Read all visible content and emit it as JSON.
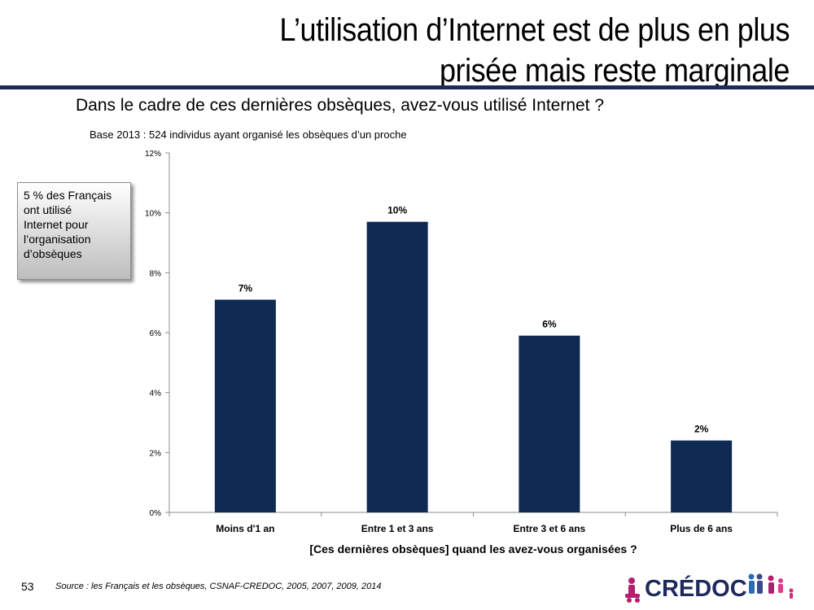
{
  "slide": {
    "title_lines": [
      "L’utilisation d’Internet est de plus en plus",
      "prisée mais reste marginale"
    ],
    "question": "Dans le cadre de ces dernières obsèques, avez-vous utilisé Internet ?",
    "base_note": "Base 2013 : 524 individus ayant organisé les obsèques d’un proche",
    "callout_lines": [
      "5 % des Français",
      "ont utilisé",
      "Internet pour",
      "l’organisation",
      "d’obsèques"
    ],
    "page_number": "53",
    "source": "Source : les Français et les obsèques, CSNAF-CREDOC, 2005, 2007, 2009, 2014",
    "logo_text": "CRÉDOC",
    "accent_color": "#1f2a5c"
  },
  "chart_data": {
    "type": "bar",
    "categories": [
      "Moins d'1 an",
      "Entre 1 et 3 ans",
      "Entre 3 et 6 ans",
      "Plus de 6 ans"
    ],
    "values": [
      7.1,
      9.7,
      5.9,
      2.4
    ],
    "data_labels": [
      "7%",
      "10%",
      "6%",
      "2%"
    ],
    "xlabel": "[Ces dernières obsèques] quand les avez-vous organisées ?",
    "ylabel": "",
    "ylim": [
      0,
      12
    ],
    "yticks": [
      0,
      2,
      4,
      6,
      8,
      10,
      12
    ],
    "ytick_labels": [
      "0%",
      "2%",
      "4%",
      "6%",
      "8%",
      "10%",
      "12%"
    ],
    "grid": false,
    "bar_color": "#0e2a52"
  }
}
